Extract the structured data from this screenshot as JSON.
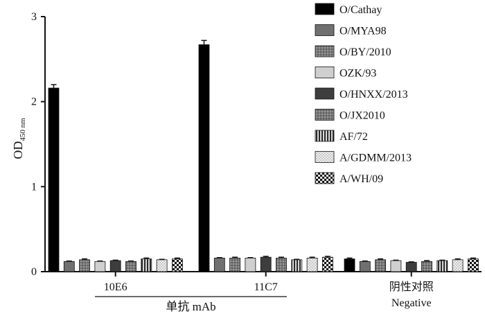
{
  "chart_data": {
    "type": "bar",
    "ylabel": "OD",
    "ylabel_sub": "450 nm",
    "ylim": [
      0,
      3
    ],
    "yticks": [
      "0",
      "1",
      "2",
      "3"
    ],
    "categories": [
      "10E6",
      "11C7",
      "阴性对照"
    ],
    "category_sublabel": {
      "阴性对照": "Negative"
    },
    "group_label": "单抗 mAb",
    "group_spans": [
      "10E6",
      "11C7"
    ],
    "series": [
      {
        "name": "O/Cathay",
        "values": [
          2.16,
          2.67,
          0.15
        ],
        "errors": [
          0.04,
          0.05,
          0.01
        ],
        "fill": "solid-black"
      },
      {
        "name": "O/MYA98",
        "values": [
          0.12,
          0.16,
          0.12
        ],
        "errors": [
          0.005,
          0.005,
          0.005
        ],
        "fill": "dark-gray"
      },
      {
        "name": "O/BY/2010",
        "values": [
          0.14,
          0.16,
          0.14
        ],
        "errors": [
          0.01,
          0.01,
          0.01
        ],
        "fill": "dotted-gray"
      },
      {
        "name": "OZK/93",
        "values": [
          0.12,
          0.16,
          0.13
        ],
        "errors": [
          0.005,
          0.005,
          0.005
        ],
        "fill": "light-gray"
      },
      {
        "name": "O/HNXX/2013",
        "values": [
          0.13,
          0.17,
          0.11
        ],
        "errors": [
          0.005,
          0.01,
          0.005
        ],
        "fill": "charcoal"
      },
      {
        "name": "O/JX2010",
        "values": [
          0.12,
          0.16,
          0.12
        ],
        "errors": [
          0.005,
          0.01,
          0.01
        ],
        "fill": "dotted-gray"
      },
      {
        "name": "AF/72",
        "values": [
          0.15,
          0.14,
          0.13
        ],
        "errors": [
          0.01,
          0.005,
          0.005
        ],
        "fill": "vertical-stripes"
      },
      {
        "name": "A/GDMM/2013",
        "values": [
          0.14,
          0.16,
          0.14
        ],
        "errors": [
          0.005,
          0.01,
          0.01
        ],
        "fill": "light-dotted"
      },
      {
        "name": "A/WH/09",
        "values": [
          0.15,
          0.17,
          0.15
        ],
        "errors": [
          0.01,
          0.01,
          0.01
        ],
        "fill": "checkerboard"
      }
    ],
    "legend_position": "top-right",
    "grid": false
  }
}
